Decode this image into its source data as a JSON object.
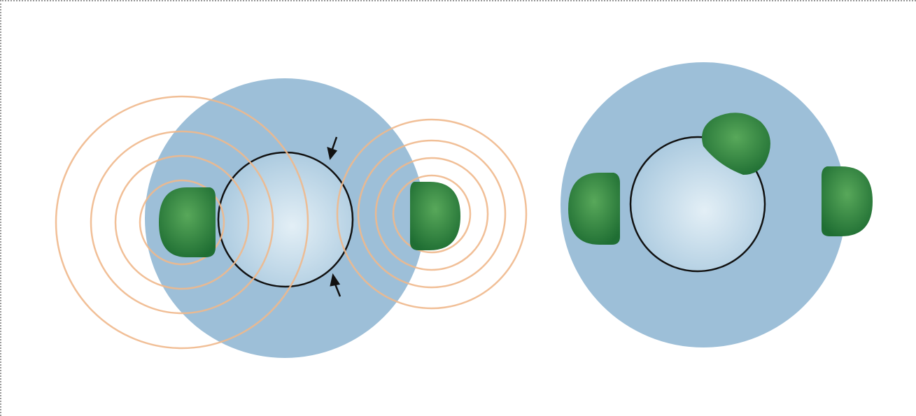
{
  "figure": {
    "panels": [
      {
        "name": "left-panel",
        "features": [
          "outer-sphere",
          "inner-sphere",
          "wave-rings-left",
          "wave-rings-right",
          "blob-left",
          "blob-right",
          "arrow-top",
          "arrow-bottom"
        ]
      },
      {
        "name": "right-panel",
        "features": [
          "outer-sphere",
          "inner-sphere",
          "blob-left",
          "blob-top",
          "blob-right"
        ]
      }
    ],
    "colors": {
      "outer_sphere": "#9dbfd8",
      "inner_sphere_center": "#e3eff6",
      "inner_sphere_edge": "#a8c8de",
      "ring": "#f0b98c",
      "blob_dark": "#1f6e33",
      "blob_light": "#58a85a",
      "outline": "#111111"
    }
  }
}
